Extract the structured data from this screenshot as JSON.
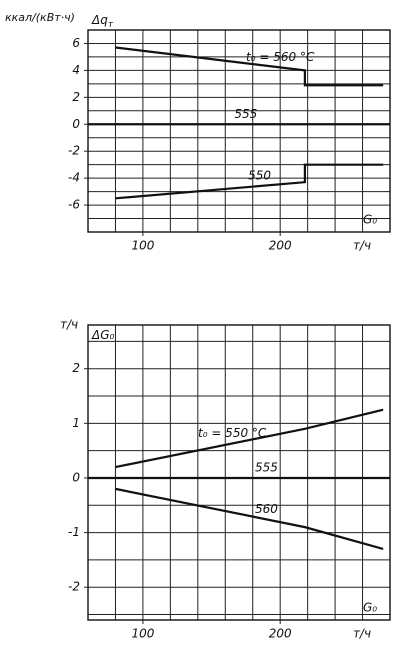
{
  "chart_data": [
    {
      "type": "line",
      "y_unit": "ккал/(кВт·ч)",
      "y_symbol": "Δq",
      "y_symbol_sub": "т",
      "x_symbol": "G₀",
      "x_unit": "т/ч",
      "xlim": [
        60,
        280
      ],
      "xticks": [
        100,
        200
      ],
      "xgrid": [
        80,
        100,
        120,
        140,
        160,
        180,
        200,
        220,
        240,
        260
      ],
      "ylim": [
        -8,
        7
      ],
      "yticks": [
        -6,
        -4,
        -2,
        0,
        2,
        4,
        6
      ],
      "ygrid": [
        -7,
        -6,
        -5,
        -4,
        -3,
        -2,
        -1,
        0,
        1,
        2,
        3,
        4,
        5,
        6
      ],
      "series": [
        {
          "name": "t₀ = 560 °C",
          "color": "#111111",
          "x": [
            80,
            218,
            218,
            275
          ],
          "values": [
            5.7,
            4.0,
            2.9,
            2.9
          ]
        },
        {
          "name": "555",
          "color": "#111111",
          "x": [
            60,
            280
          ],
          "values": [
            0,
            0
          ]
        },
        {
          "name": "550",
          "color": "#111111",
          "x": [
            80,
            218,
            218,
            275
          ],
          "values": [
            -5.5,
            -4.3,
            -3.0,
            -3.0
          ]
        }
      ]
    },
    {
      "type": "line",
      "y_unit": "т/ч",
      "y_symbol": "ΔG₀",
      "x_symbol": "G₀",
      "x_unit": "т/ч",
      "xlim": [
        60,
        280
      ],
      "xticks": [
        100,
        200
      ],
      "xgrid": [
        80,
        100,
        120,
        140,
        160,
        180,
        200,
        220,
        240,
        260
      ],
      "ylim": [
        -2.6,
        2.8
      ],
      "yticks": [
        -2,
        -1,
        0,
        1,
        2
      ],
      "ygrid": [
        -2.5,
        -2,
        -1.5,
        -1,
        -0.5,
        0,
        0.5,
        1,
        1.5,
        2,
        2.5
      ],
      "series": [
        {
          "name": "t₀ = 550 °C",
          "color": "#111111",
          "x": [
            80,
            218,
            275
          ],
          "values": [
            0.2,
            0.9,
            1.25
          ]
        },
        {
          "name": "555",
          "color": "#111111",
          "x": [
            60,
            280
          ],
          "values": [
            0,
            0
          ]
        },
        {
          "name": "560",
          "color": "#111111",
          "x": [
            80,
            218,
            275
          ],
          "values": [
            -0.2,
            -0.9,
            -1.3
          ]
        }
      ]
    }
  ]
}
